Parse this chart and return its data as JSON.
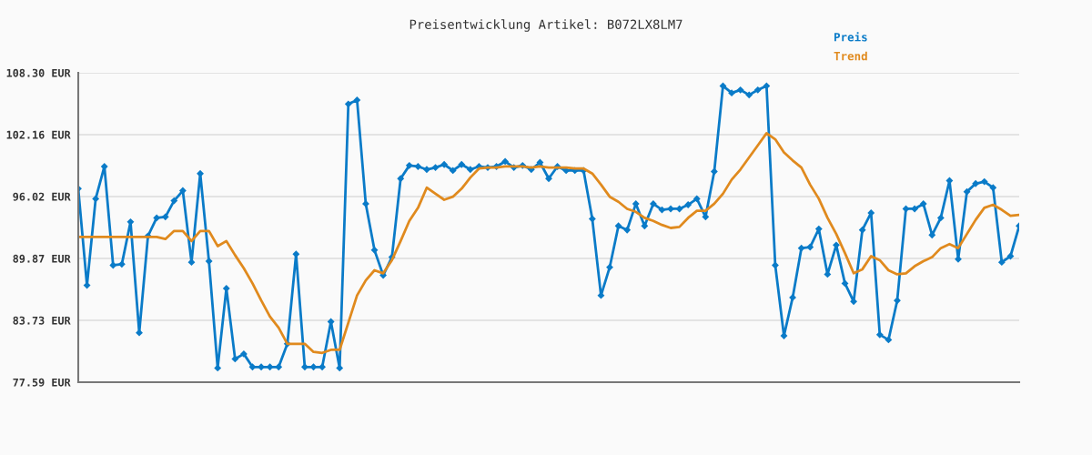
{
  "chart_data": {
    "type": "line",
    "title": "Preisentwicklung Artikel: B072LX8LM7",
    "categories": [
      null,
      null,
      null,
      null,
      null,
      null,
      null,
      null,
      null,
      null,
      null,
      null,
      null,
      null,
      null,
      null,
      null,
      null,
      null,
      null,
      null,
      null,
      null,
      null,
      null,
      null,
      null,
      null,
      null,
      null,
      null,
      null,
      null,
      null,
      null,
      null,
      null,
      null,
      null,
      null,
      null,
      null,
      null,
      null,
      null,
      null,
      null,
      null,
      null,
      null,
      null,
      null,
      null,
      null,
      null,
      null,
      null,
      null,
      null,
      null,
      null,
      null,
      null,
      null,
      null,
      null,
      null,
      null,
      null,
      null,
      null,
      null,
      null,
      null,
      null,
      null,
      null,
      null,
      null,
      null,
      null,
      null,
      null,
      null,
      null,
      null,
      null,
      null,
      null,
      null,
      null,
      null,
      null,
      null,
      null,
      null,
      null,
      null,
      null,
      null,
      null,
      null,
      null,
      null,
      null,
      null,
      null,
      null,
      null
    ],
    "series": [
      {
        "name": "Preis",
        "color": "#0a7bc8",
        "marker": "diamond",
        "values": [
          96.8,
          87.2,
          95.8,
          99.0,
          89.2,
          89.3,
          93.5,
          82.5,
          92.1,
          93.9,
          94.0,
          95.6,
          96.6,
          89.5,
          98.3,
          89.6,
          79.0,
          86.9,
          79.9,
          80.4,
          79.1,
          79.1,
          79.1,
          79.1,
          81.4,
          90.3,
          79.1,
          79.1,
          79.1,
          83.6,
          79.0,
          105.2,
          105.6,
          95.3,
          90.7,
          88.2,
          90.0,
          97.8,
          99.1,
          99.0,
          98.7,
          98.9,
          99.2,
          98.6,
          99.2,
          98.7,
          99.0,
          98.9,
          99.0,
          99.5,
          98.9,
          99.1,
          98.7,
          99.4,
          97.8,
          99.0,
          98.6,
          98.6,
          98.6,
          93.8,
          86.2,
          89.0,
          93.1,
          92.7,
          95.3,
          93.1,
          95.3,
          94.7,
          94.8,
          94.8,
          95.2,
          95.8,
          94.0,
          98.5,
          107.0,
          106.3,
          106.6,
          106.1,
          106.6,
          107.0,
          89.2,
          82.2,
          86.0,
          90.9,
          91.0,
          92.8,
          88.3,
          91.2,
          87.4,
          85.6,
          92.7,
          94.4,
          82.3,
          81.8,
          85.7,
          94.8,
          94.8,
          95.3,
          92.2,
          93.9,
          97.6,
          89.8,
          96.5,
          97.3,
          97.5,
          96.9,
          89.5,
          90.1,
          93.1
        ]
      },
      {
        "name": "Trend",
        "color": "#e08a1e",
        "marker": "none",
        "values": [
          92.0,
          92.0,
          92.0,
          92.0,
          92.0,
          92.0,
          92.0,
          92.0,
          92.0,
          92.0,
          91.8,
          92.6,
          92.6,
          91.6,
          92.6,
          92.6,
          91.1,
          91.6,
          90.2,
          88.9,
          87.4,
          85.7,
          84.1,
          83.0,
          81.4,
          81.4,
          81.4,
          80.6,
          80.5,
          80.8,
          80.8,
          83.5,
          86.2,
          87.7,
          88.7,
          88.4,
          89.7,
          91.6,
          93.6,
          94.9,
          96.9,
          96.3,
          95.7,
          96.0,
          96.8,
          97.9,
          98.8,
          98.9,
          98.9,
          99.0,
          99.0,
          99.0,
          98.9,
          99.0,
          98.9,
          98.9,
          98.9,
          98.8,
          98.8,
          98.3,
          97.2,
          96.0,
          95.5,
          94.8,
          94.5,
          93.9,
          93.6,
          93.2,
          92.9,
          93.0,
          93.9,
          94.6,
          94.6,
          95.3,
          96.3,
          97.7,
          98.7,
          99.9,
          101.1,
          102.3,
          101.7,
          100.4,
          99.6,
          98.9,
          97.2,
          95.8,
          93.9,
          92.3,
          90.4,
          88.4,
          88.8,
          90.1,
          89.7,
          88.7,
          88.3,
          88.4,
          89.1,
          89.6,
          90.0,
          90.9,
          91.3,
          90.9,
          92.3,
          93.7,
          94.9,
          95.2,
          94.7,
          94.1,
          94.2
        ]
      }
    ],
    "ylim": [
      77.59,
      108.3
    ],
    "yticks": [
      {
        "value": 77.59,
        "label": "77.59 EUR"
      },
      {
        "value": 83.73,
        "label": "83.73 EUR"
      },
      {
        "value": 89.87,
        "label": "89.87 EUR"
      },
      {
        "value": 96.02,
        "label": "96.02 EUR"
      },
      {
        "value": 102.16,
        "label": "102.16 EUR"
      },
      {
        "value": 108.3,
        "label": "108.30 EUR"
      }
    ],
    "grid": "y",
    "legend": "top right",
    "tick_labels": "y"
  }
}
